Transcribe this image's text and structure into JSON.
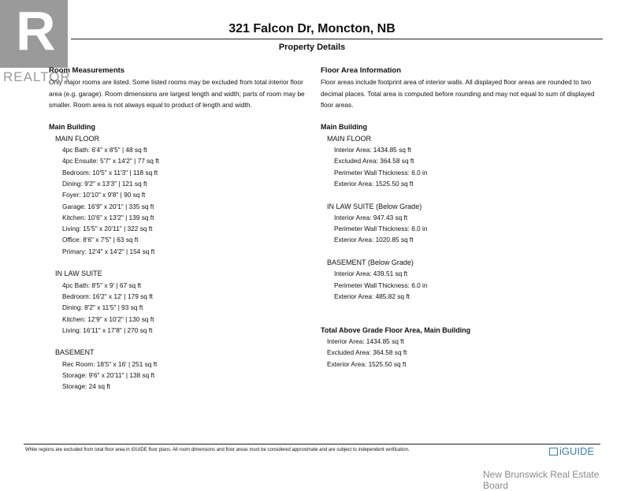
{
  "logo": {
    "mark": "R",
    "text": "REALTOR"
  },
  "header": {
    "title": "321 Falcon Dr, Moncton, NB",
    "subtitle": "Property Details"
  },
  "room_measurements": {
    "heading": "Room Measurements",
    "description": "Only major rooms are listed. Some listed rooms may be excluded from total interior floor area (e.g. garage). Room dimensions are largest length and width; parts of room may be smaller. Room area is not always equal to product of length and width.",
    "building": "Main Building",
    "groups": [
      {
        "name": "MAIN FLOOR",
        "items": [
          "4pc Bath: 6'4\" x 8'5\" | 48 sq ft",
          "4pc Ensuite: 5'7\" x 14'2\" | 77 sq ft",
          "Bedroom: 10'5\" x 11'3\" | 118 sq ft",
          "Dining: 9'2\" x 13'3\" | 121 sq ft",
          "Foyer: 10'10\" x 9'8\" | 90 sq ft",
          "Garage: 16'9\" x 20'1\" | 335 sq ft",
          "Kitchen: 10'6\" x 13'2\" | 139 sq ft",
          "Living: 15'5\" x 20'11\" | 322 sq ft",
          "Office: 8'6\" x 7'5\" | 63 sq ft",
          "Primary: 12'4\" x 14'2\" | 154 sq ft"
        ]
      },
      {
        "name": "IN LAW SUITE",
        "items": [
          "4pc Bath: 8'5\" x 9' | 67 sq ft",
          "Bedroom: 16'2\" x 12' | 179 sq ft",
          "Dining: 8'2\" x 11'5\" | 93 sq ft",
          "Kitchen: 12'9\" x 10'2\" | 130 sq ft",
          "Living: 16'11\" x 17'8\" | 270 sq ft"
        ]
      },
      {
        "name": "BASEMENT",
        "items": [
          "Rec Room: 18'5\" x 16' | 251 sq ft",
          "Storage: 9'6\" x 20'11\" | 138 sq ft",
          "Storage: 24 sq ft"
        ]
      }
    ]
  },
  "floor_area": {
    "heading": "Floor Area Information",
    "description": "Floor areas include footprint area of interior walls. All displayed floor areas are rounded to two decimal places. Total area is computed before rounding and may not equal to sum of displayed floor areas.",
    "building": "Main Building",
    "groups": [
      {
        "name": "MAIN FLOOR",
        "items": [
          "Interior Area: 1434.85 sq ft",
          "Excluded Area: 364.58 sq ft",
          "Perimeter Wall Thickness: 6.0 in",
          "Exterior Area: 1525.50 sq ft"
        ]
      },
      {
        "name": "IN LAW SUITE (Below Grade)",
        "items": [
          "Interior Area: 947.43 sq ft",
          "Perimeter Wall Thickness: 6.0 in",
          "Exterior Area: 1020.85 sq ft"
        ]
      },
      {
        "name": "BASEMENT (Below Grade)",
        "items": [
          "Interior Area: 439.51 sq ft",
          "Perimeter Wall Thickness: 6.0 in",
          "Exterior Area: 485.82 sq ft"
        ]
      }
    ],
    "total": {
      "heading": "Total Above Grade Floor Area, Main Building",
      "items": [
        "Interior Area: 1434.85 sq ft",
        "Excluded Area: 364.58 sq ft",
        "Exterior Area: 1525.50 sq ft"
      ]
    }
  },
  "footer": {
    "note": "White regions are excluded from total floor area in iGUIDE floor plans. All room dimensions and floor areas must be considered approximate and are subject to independent verification.",
    "brand": "iGUIDE",
    "brand_color": "#3a7dbd",
    "board": "New Brunswick Real Estate Board"
  }
}
